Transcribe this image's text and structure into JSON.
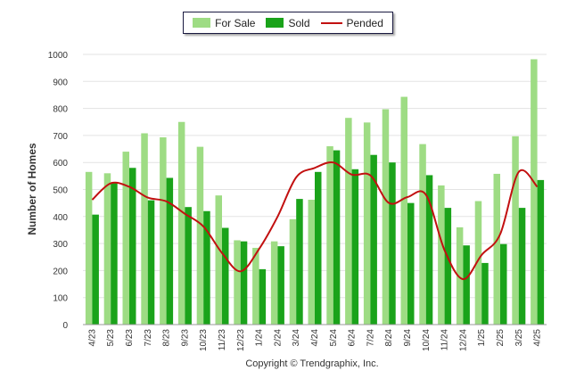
{
  "chart_data": {
    "type": "bar",
    "categories": [
      "4/23",
      "5/23",
      "6/23",
      "7/23",
      "8/23",
      "9/23",
      "10/23",
      "11/23",
      "12/23",
      "1/24",
      "2/24",
      "3/24",
      "4/24",
      "5/24",
      "6/24",
      "7/24",
      "8/24",
      "9/24",
      "10/24",
      "11/24",
      "12/24",
      "1/25",
      "2/25",
      "3/25",
      "4/25"
    ],
    "series": [
      {
        "name": "For Sale",
        "type": "bar",
        "color": "#9edc84",
        "values": [
          565,
          560,
          640,
          708,
          693,
          750,
          658,
          478,
          312,
          284,
          308,
          390,
          462,
          660,
          765,
          748,
          797,
          843,
          668,
          515,
          360,
          457,
          558,
          697,
          982
        ]
      },
      {
        "name": "Sold",
        "type": "bar",
        "color": "#1aa31a",
        "values": [
          407,
          527,
          580,
          460,
          543,
          435,
          420,
          358,
          308,
          205,
          290,
          465,
          565,
          645,
          575,
          628,
          600,
          450,
          553,
          432,
          293,
          228,
          298,
          432,
          535
        ]
      },
      {
        "name": "Pended",
        "type": "line",
        "color": "#c21010",
        "values": [
          462,
          523,
          510,
          470,
          456,
          410,
          363,
          265,
          197,
          280,
          400,
          545,
          580,
          600,
          555,
          552,
          450,
          472,
          480,
          275,
          168,
          258,
          335,
          565,
          510
        ]
      }
    ],
    "ylabel": "Number of Homes",
    "ylim": [
      0,
      1000
    ],
    "yticks": [
      "0",
      "100",
      "200",
      "300",
      "400",
      "500",
      "600",
      "700",
      "800",
      "900",
      "1000"
    ],
    "grid": true,
    "legend_position": "top-center"
  },
  "legend": {
    "for_sale": "For Sale",
    "sold": "Sold",
    "pended": "Pended"
  },
  "footer": {
    "copyright": "Copyright © Trendgraphix, Inc."
  }
}
